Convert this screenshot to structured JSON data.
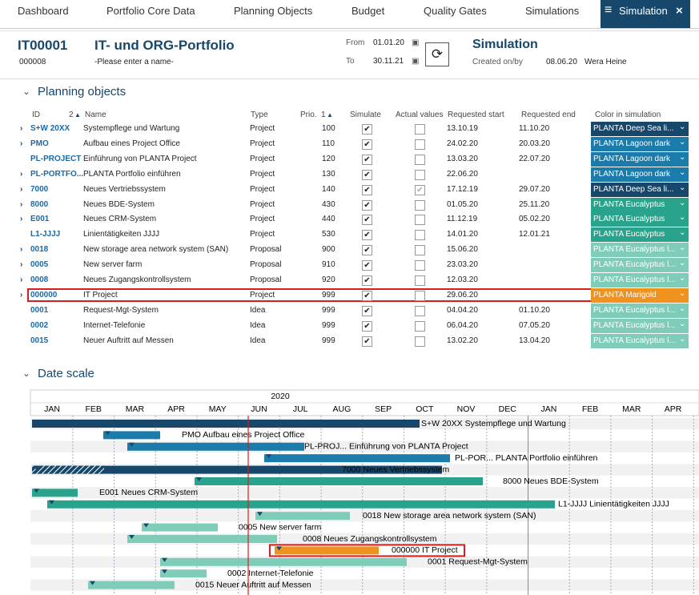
{
  "nav": {
    "items": [
      "Dashboard",
      "Portfolio Core Data",
      "Planning Objects",
      "Budget",
      "Quality Gates",
      "Simulations"
    ],
    "active": "Simulation"
  },
  "header": {
    "id": "IT00001",
    "title": "IT- und ORG-Portfolio",
    "number": "000008",
    "name_placeholder": "-Please enter a name-",
    "from_label": "From",
    "from": "01.01.20",
    "to_label": "To",
    "to": "30.11.21",
    "sim_title": "Simulation",
    "created_label": "Created on/by",
    "created_on": "08.06.20",
    "created_by": "Wera Heine"
  },
  "planning": {
    "title": "Planning objects",
    "id_sort": 2,
    "prio_sort": 1,
    "columns": [
      "ID",
      "Name",
      "Type",
      "Prio.",
      "Simulate",
      "Actual values",
      "Requested start",
      "Requested end",
      "Color in simulation"
    ],
    "rows": [
      {
        "id": "S+W 20XX",
        "name": "Systempflege und Wartung",
        "type": "Project",
        "prio": 100,
        "simulate": true,
        "actual": false,
        "start": "13.10.19",
        "end": "11.10.20",
        "color_name": "PLANTA Deep Sea li...",
        "color": "#17476b",
        "expandable": true
      },
      {
        "id": "PMO",
        "name": "Aufbau eines Project Office",
        "type": "Project",
        "prio": 110,
        "simulate": true,
        "actual": false,
        "start": "24.02.20",
        "end": "20.03.20",
        "color_name": "PLANTA Lagoon dark",
        "color": "#1b7bab",
        "expandable": true
      },
      {
        "id": "PL-PROJECT",
        "name": "Einführung von PLANTA Project",
        "type": "Project",
        "prio": 120,
        "simulate": true,
        "actual": false,
        "start": "13.03.20",
        "end": "22.07.20",
        "color_name": "PLANTA Lagoon dark",
        "color": "#1b7bab",
        "expandable": false
      },
      {
        "id": "PL-PORTFO...",
        "name": "PLANTA Portfolio einführen",
        "type": "Project",
        "prio": 130,
        "simulate": true,
        "actual": false,
        "start": "22.06.20",
        "end": null,
        "color_name": "PLANTA Lagoon dark",
        "color": "#1b7bab",
        "expandable": true
      },
      {
        "id": "7000",
        "name": "Neues Vertriebssystem",
        "type": "Project",
        "prio": 140,
        "simulate": true,
        "actual": true,
        "start": "17.12.19",
        "end": "29.07.20",
        "color_name": "PLANTA Deep Sea li...",
        "color": "#17476b",
        "expandable": true
      },
      {
        "id": "8000",
        "name": "Neues BDE-System",
        "type": "Project",
        "prio": 430,
        "simulate": true,
        "actual": false,
        "start": "01.05.20",
        "end": "25.11.20",
        "color_name": "PLANTA Eucalyptus",
        "color": "#2aa38c",
        "expandable": true
      },
      {
        "id": "E001",
        "name": "Neues CRM-System",
        "type": "Project",
        "prio": 440,
        "simulate": true,
        "actual": false,
        "start": "11.12.19",
        "end": "05.02.20",
        "color_name": "PLANTA Eucalyptus",
        "color": "#2aa38c",
        "expandable": true
      },
      {
        "id": "L1-JJJJ",
        "name": "Linientätigkeiten JJJJ",
        "type": "Project",
        "prio": 530,
        "simulate": true,
        "actual": false,
        "start": "14.01.20",
        "end": "12.01.21",
        "color_name": "PLANTA Eucalyptus",
        "color": "#2aa38c",
        "expandable": false
      },
      {
        "id": "0018",
        "name": "New storage area network system (SAN)",
        "type": "Proposal",
        "prio": 900,
        "simulate": true,
        "actual": false,
        "start": "15.06.20",
        "end": null,
        "color_name": "PLANTA Eucalyptus l...",
        "color": "#7fcdb8",
        "expandable": true
      },
      {
        "id": "0005",
        "name": "New server farm",
        "type": "Proposal",
        "prio": 910,
        "simulate": true,
        "actual": false,
        "start": "23.03.20",
        "end": null,
        "color_name": "PLANTA Eucalyptus l...",
        "color": "#7fcdb8",
        "expandable": true
      },
      {
        "id": "0008",
        "name": "Neues Zugangskontrollsystem",
        "type": "Proposal",
        "prio": 920,
        "simulate": true,
        "actual": false,
        "start": "12.03.20",
        "end": null,
        "color_name": "PLANTA Eucalyptus l...",
        "color": "#7fcdb8",
        "expandable": true
      },
      {
        "id": "000000",
        "name": "IT Project",
        "type": "Project",
        "prio": 999,
        "simulate": true,
        "actual": false,
        "start": "29.06.20",
        "end": null,
        "color_name": "PLANTA Marigold",
        "color": "#f0921e",
        "expandable": true,
        "highlighted": true
      },
      {
        "id": "0001",
        "name": "Request-Mgt-System",
        "type": "Idea",
        "prio": 999,
        "simulate": true,
        "actual": false,
        "start": "04.04.20",
        "end": "01.10.20",
        "color_name": "PLANTA Eucalyptus l...",
        "color": "#7fcdb8",
        "expandable": false
      },
      {
        "id": "0002",
        "name": "Internet-Telefonie",
        "type": "Idea",
        "prio": 999,
        "simulate": true,
        "actual": false,
        "start": "06.04.20",
        "end": "07.05.20",
        "color_name": "PLANTA Eucalyptus l...",
        "color": "#7fcdb8",
        "expandable": false
      },
      {
        "id": "0015",
        "name": "Neuer Auftritt auf Messen",
        "type": "Idea",
        "prio": 999,
        "simulate": true,
        "actual": false,
        "start": "13.02.20",
        "end": "13.04.20",
        "color_name": "PLANTA Eucalyptus l...",
        "color": "#7fcdb8",
        "expandable": false
      }
    ]
  },
  "date_scale": {
    "title": "Date scale",
    "year": "2020",
    "months": [
      "JAN",
      "FEB",
      "MAR",
      "APR",
      "MAY",
      "JUN",
      "JUL",
      "AUG",
      "SEP",
      "OCT",
      "NOV",
      "DEC",
      "JAN",
      "FEB",
      "MAR",
      "APR"
    ],
    "bars": [
      {
        "label": "S+W 20XX Systempflege und Wartung",
        "color": "#17476b"
      },
      {
        "label": "PMO Aufbau eines Project Office",
        "color": "#1b7bab"
      },
      {
        "label": "PL-PROJ... Einführung von PLANTA Project",
        "color": "#1b7bab"
      },
      {
        "label": "PL-POR... PLANTA Portfolio einführen",
        "color": "#1b7bab"
      },
      {
        "label": "7000 Neues Vertriebssystem",
        "color": "#17476b"
      },
      {
        "label": "8000 Neues BDE-System",
        "color": "#2aa38c"
      },
      {
        "label": "E001 Neues CRM-System",
        "color": "#2aa38c"
      },
      {
        "label": "L1-JJJJ Linientätigkeiten JJJJ",
        "color": "#2aa38c"
      },
      {
        "label": "0018 New storage area network system (SAN)",
        "color": "#7fcdb8"
      },
      {
        "label": "0005 New server farm",
        "color": "#7fcdb8"
      },
      {
        "label": "0008 Neues Zugangskontrollsystem",
        "color": "#7fcdb8"
      },
      {
        "label": "000000 IT Project",
        "color": "#f0921e",
        "highlighted": true
      },
      {
        "label": "0001 Request-Mgt-System",
        "color": "#7fcdb8"
      },
      {
        "label": "0002 Internet-Telefonie",
        "color": "#7fcdb8"
      },
      {
        "label": "0015 Neuer Auftritt auf Messen",
        "color": "#7fcdb8"
      }
    ]
  }
}
